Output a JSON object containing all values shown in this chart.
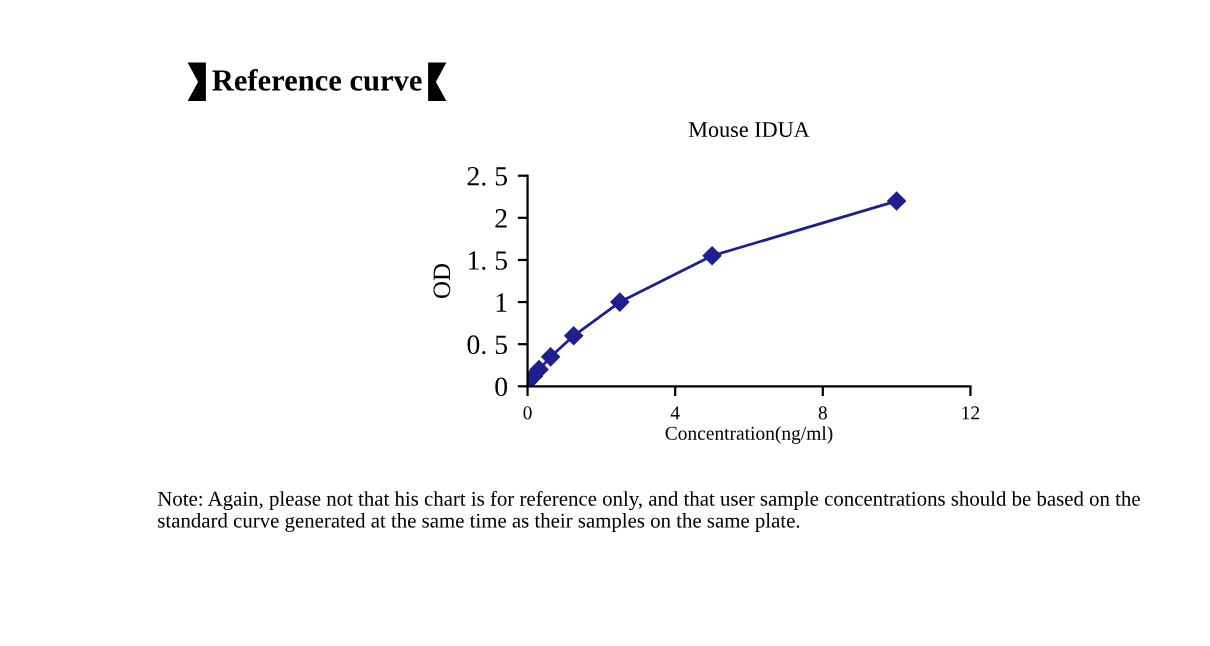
{
  "chart_data": {
    "type": "line",
    "title": "Mouse IDUA",
    "xlabel": "Concentration(ng/ml)",
    "ylabel": "OD",
    "annotations": [
      "Reference curve",
      "Note: Again, please not that his chart is for reference only, and that user sample concentrations should be based on the standard curve generated at the same time as their samples on the same plate."
    ],
    "x": [
      0,
      0.156,
      0.3125,
      0.625,
      1.25,
      2.5,
      5,
      10
    ],
    "series": [
      {
        "color": "#1f1f8f",
        "values": [
          0.05,
          0.12,
          0.2,
          0.35,
          0.6,
          1.0,
          1.55,
          2.2
        ]
      }
    ],
    "marker": "diamond",
    "line_style": "solid",
    "grid": false,
    "legend": false,
    "xlim": [
      0,
      12
    ],
    "xticks": [
      0,
      4,
      8,
      12
    ],
    "ylim": [
      0,
      2.5
    ],
    "yticks": [
      0,
      {
        "value": 0.5,
        "label": "0. 5"
      },
      1,
      {
        "value": 1.5,
        "label": "1. 5"
      },
      2,
      {
        "value": 2.5,
        "label": "2. 5"
      }
    ]
  }
}
